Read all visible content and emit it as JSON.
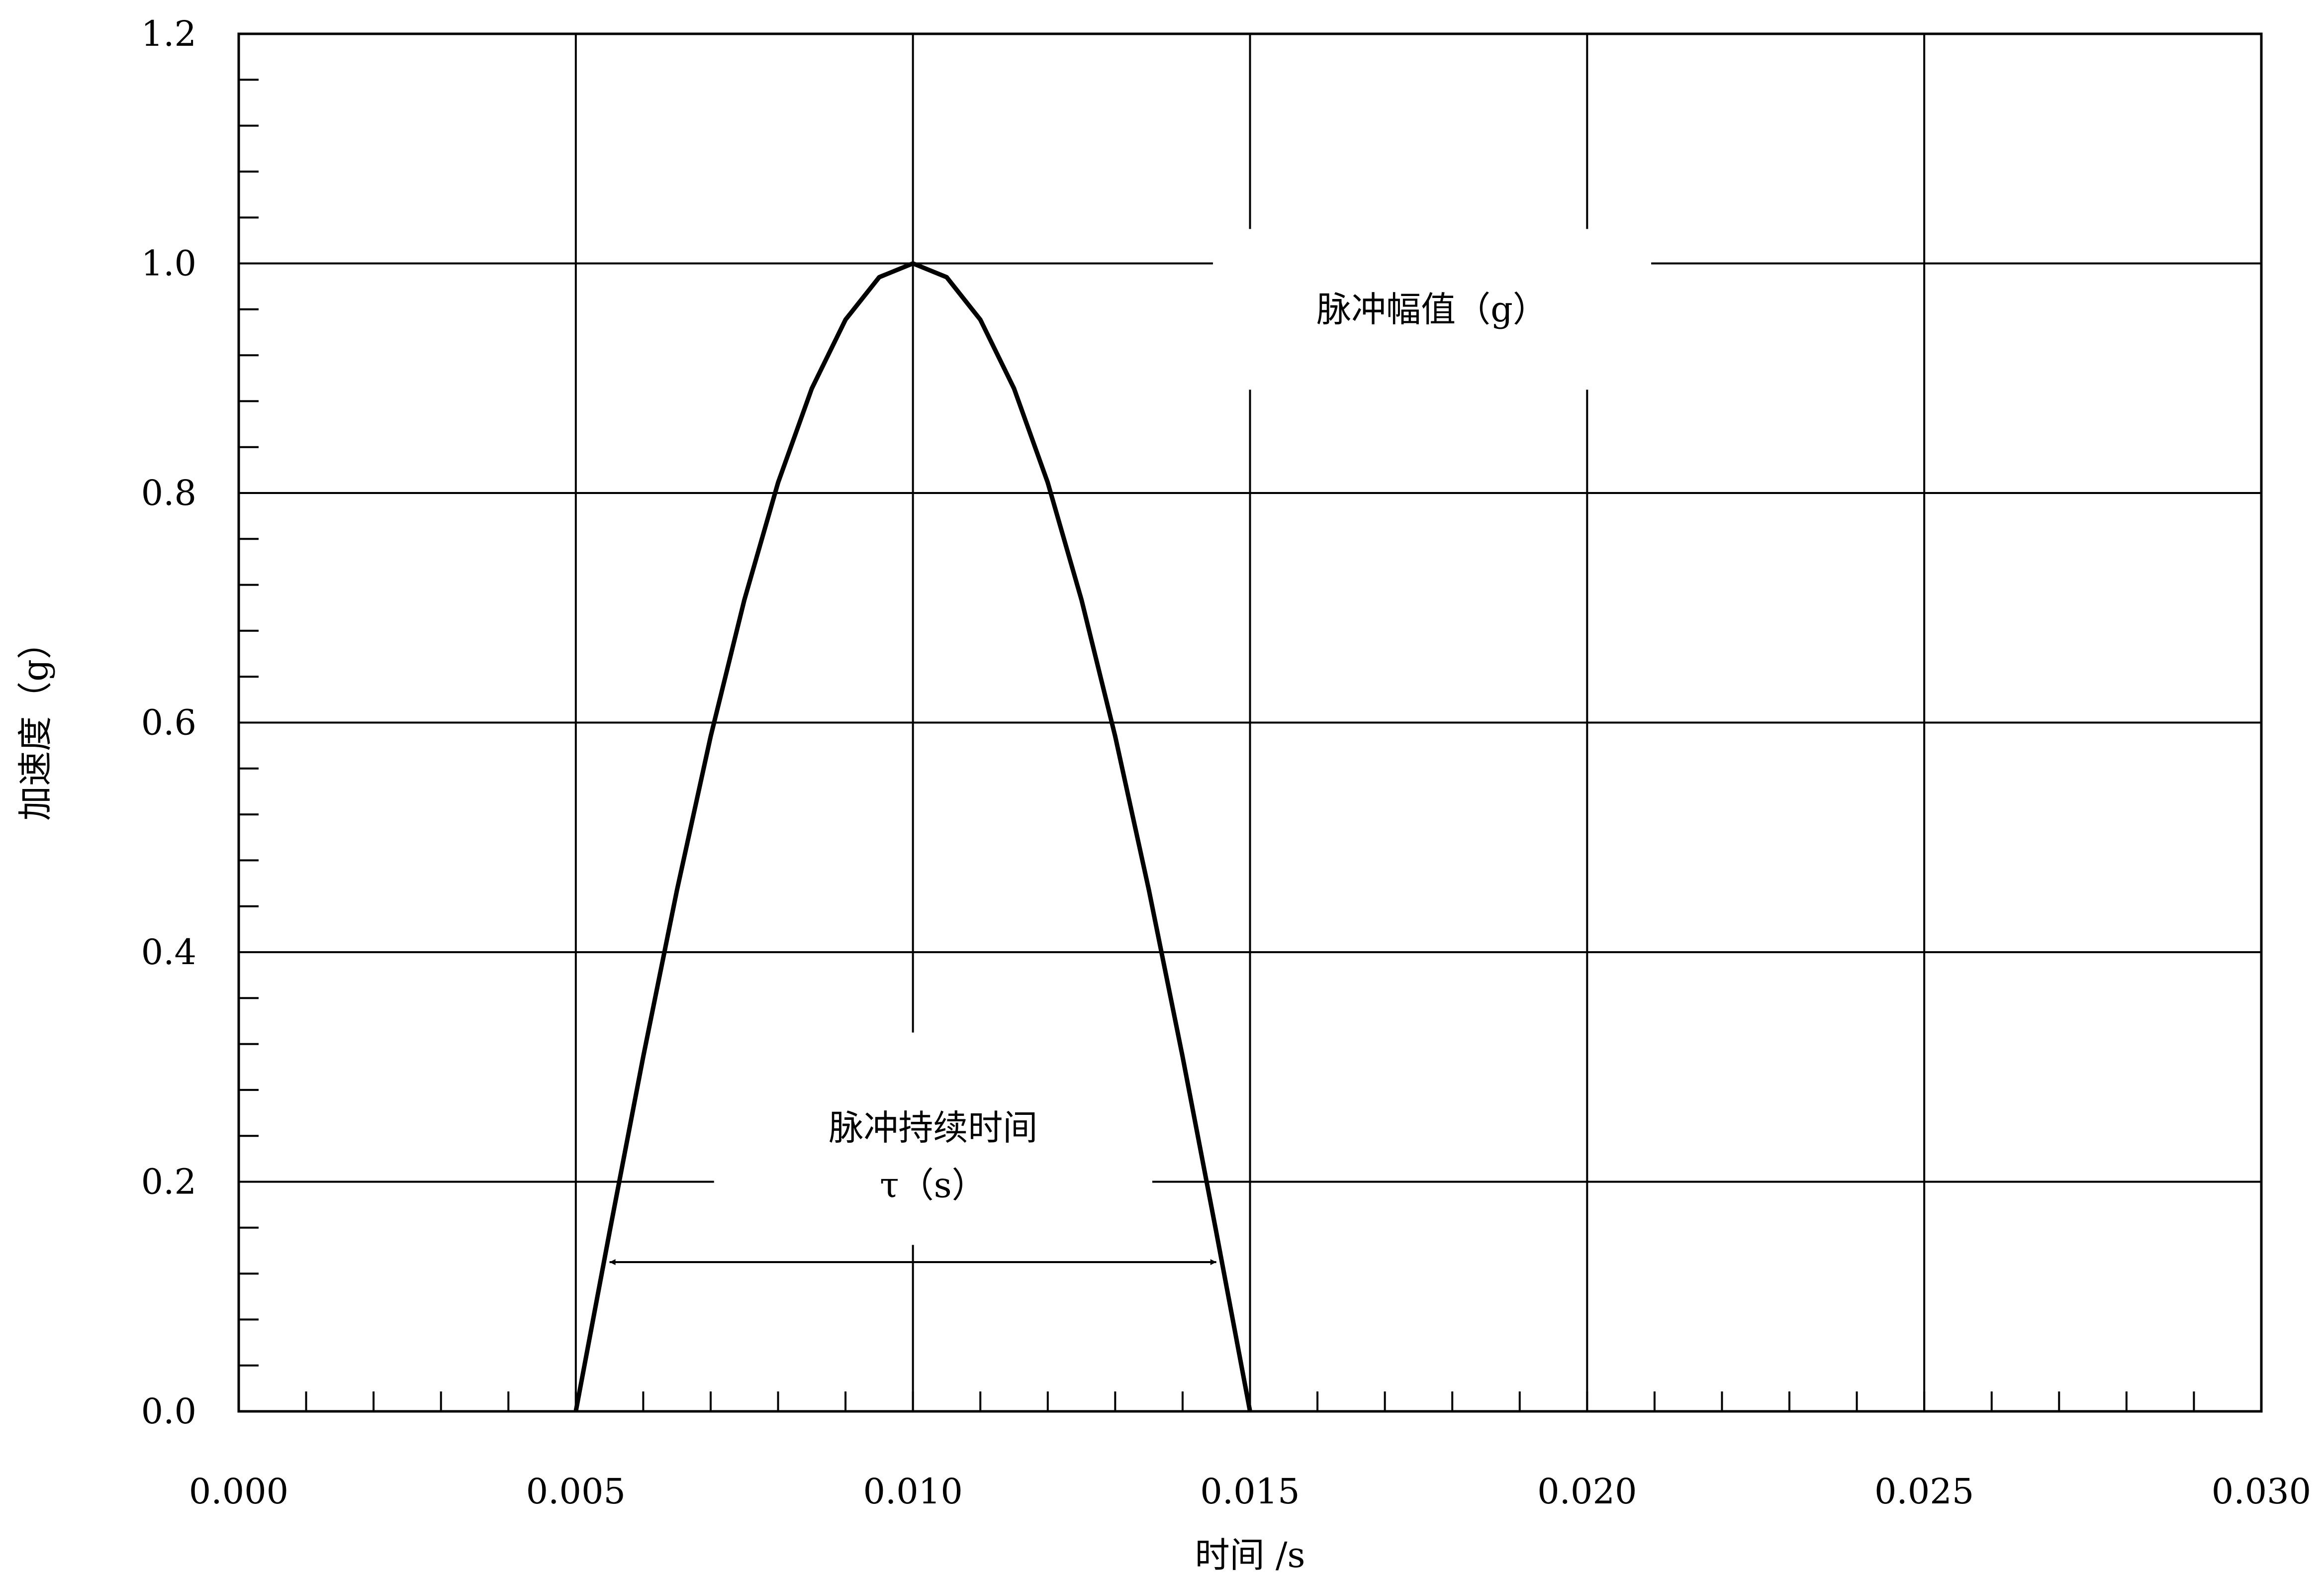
{
  "chart_data": {
    "type": "line",
    "title": "",
    "xlabel": "时间 /s",
    "ylabel": "加速度（g）",
    "xlim": [
      0,
      0.03
    ],
    "ylim": [
      0,
      1.2
    ],
    "x_ticks": [
      0.0,
      0.005,
      0.01,
      0.015,
      0.02,
      0.025,
      0.03
    ],
    "x_tick_labels": [
      "0.000",
      "0.005",
      "0.010",
      "0.015",
      "0.020",
      "0.025",
      "0.030"
    ],
    "y_ticks": [
      0.0,
      0.2,
      0.4,
      0.6,
      0.8,
      1.0,
      1.2
    ],
    "y_tick_labels": [
      "0.0",
      "0.2",
      "0.4",
      "0.6",
      "0.8",
      "1.0",
      "1.2"
    ],
    "x_minor_step": 0.001,
    "y_minor_step": 0.04,
    "grid": true,
    "legend": "none",
    "series": [
      {
        "shape": "half-sine",
        "x": [
          0.005,
          0.0055,
          0.006,
          0.0065,
          0.007,
          0.0075,
          0.008,
          0.0085,
          0.009,
          0.0095,
          0.01,
          0.0105,
          0.011,
          0.0115,
          0.012,
          0.0125,
          0.013,
          0.0135,
          0.014,
          0.0145,
          0.015
        ],
        "y": [
          0.0,
          0.156,
          0.309,
          0.454,
          0.588,
          0.707,
          0.809,
          0.891,
          0.951,
          0.988,
          1.0,
          0.988,
          0.951,
          0.891,
          0.809,
          0.707,
          0.588,
          0.454,
          0.309,
          0.156,
          0.0
        ],
        "color": "#000000"
      }
    ],
    "annotations": {
      "peak_label": "脉冲幅值（g）",
      "duration_label": "脉冲持续时间",
      "duration_symbol": "τ（s）",
      "duration_arrow": {
        "x_start": 0.0055,
        "x_end": 0.0145,
        "y": 0.13
      }
    }
  }
}
